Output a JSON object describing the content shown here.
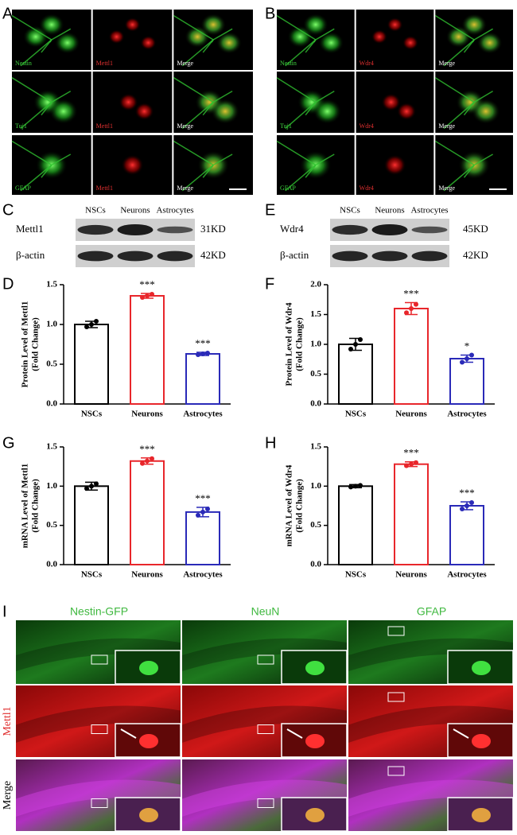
{
  "panel_labels": [
    "A",
    "B",
    "C",
    "D",
    "E",
    "F",
    "G",
    "H",
    "I"
  ],
  "micrographs": [
    {
      "labels": [
        [
          "Nestin",
          "Mettl1",
          "Merge"
        ],
        [
          "Tuj1",
          "Mettl1",
          "Merge"
        ],
        [
          "GFAP",
          "Mettl1",
          "Merge"
        ]
      ]
    },
    {
      "labels": [
        [
          "Nestin",
          "Wdr4",
          "Merge"
        ],
        [
          "Tuj1",
          "Wdr4",
          "Merge"
        ],
        [
          "GFAP",
          "Wdr4",
          "Merge"
        ]
      ]
    }
  ],
  "blots": [
    {
      "columns": [
        "NSCs",
        "Neurons",
        "Astrocytes"
      ],
      "rows": [
        {
          "name": "Mettl1",
          "size": "31KD"
        },
        {
          "name": "β-actin",
          "size": "42KD"
        }
      ]
    },
    {
      "columns": [
        "NSCs",
        "Neurons",
        "Astrocytes"
      ],
      "rows": [
        {
          "name": "Wdr4",
          "size": "45KD"
        },
        {
          "name": "β-actin",
          "size": "42KD"
        }
      ]
    }
  ],
  "tissue": {
    "columns": [
      "Nestin-GFP",
      "NeuN",
      "GFAP"
    ],
    "rows": [
      "Mettl1",
      "Merge"
    ]
  },
  "chart_data": [
    {
      "type": "bar",
      "y_label": [
        "Protein Level of Mettl1",
        "(Fold Change)"
      ],
      "categories": [
        "NSCs",
        "Neurons",
        "Astrocytes"
      ],
      "values": [
        1.0,
        1.36,
        0.63
      ],
      "errors": [
        0.04,
        0.03,
        0.02
      ],
      "points": [
        [
          0.97,
          1.0,
          1.04
        ],
        [
          1.34,
          1.36,
          1.38
        ],
        [
          0.62,
          0.63,
          0.64
        ]
      ],
      "significance": [
        null,
        "***",
        "***"
      ],
      "colors": [
        "#000000",
        "#e8262b",
        "#2a2ab8"
      ],
      "ylim": [
        0,
        1.5
      ],
      "yticks": [
        {
          "value": 0,
          "label": "0.0"
        },
        0.5,
        {
          "value": 1,
          "label": "1.0"
        },
        1.5
      ]
    },
    {
      "type": "bar",
      "y_label": [
        "Protein Level of Wdr4",
        "(Fold Change)"
      ],
      "categories": [
        "NSCs",
        "Neurons",
        "Astrocytes"
      ],
      "values": [
        1.0,
        1.6,
        0.76
      ],
      "errors": [
        0.1,
        0.1,
        0.06
      ],
      "points": [
        [
          0.92,
          1.0,
          1.08
        ],
        [
          1.53,
          1.6,
          1.67
        ],
        [
          0.7,
          0.76,
          0.82
        ]
      ],
      "significance": [
        null,
        "***",
        "*"
      ],
      "colors": [
        "#000000",
        "#e8262b",
        "#2a2ab8"
      ],
      "ylim": [
        0,
        2
      ],
      "yticks": [
        {
          "value": 0,
          "label": "0.0"
        },
        0.5,
        {
          "value": 1,
          "label": "1.0"
        },
        1.5,
        {
          "value": 2,
          "label": "2.0"
        }
      ]
    },
    {
      "type": "bar",
      "y_label": [
        "mRNA Level of Mettl1",
        "(Fold Change)"
      ],
      "categories": [
        "NSCs",
        "Neurons",
        "Astrocytes"
      ],
      "values": [
        1.0,
        1.32,
        0.67
      ],
      "errors": [
        0.05,
        0.04,
        0.06
      ],
      "points": [
        [
          0.97,
          1.0,
          1.03
        ],
        [
          1.29,
          1.32,
          1.35
        ],
        [
          0.63,
          0.67,
          0.71
        ]
      ],
      "significance": [
        null,
        "***",
        "***"
      ],
      "colors": [
        "#000000",
        "#e8262b",
        "#2a2ab8"
      ],
      "ylim": [
        0,
        1.5
      ],
      "yticks": [
        {
          "value": 0,
          "label": "0.0"
        },
        0.5,
        {
          "value": 1,
          "label": "1.0"
        },
        1.5
      ]
    },
    {
      "type": "bar",
      "y_label": [
        "mRNA Level of Wdr4",
        "(Fold Change)"
      ],
      "categories": [
        "NSCs",
        "Neurons",
        "Astrocytes"
      ],
      "values": [
        1.0,
        1.28,
        0.75
      ],
      "errors": [
        0.02,
        0.03,
        0.05
      ],
      "points": [
        [
          0.99,
          1.0,
          1.01
        ],
        [
          1.26,
          1.28,
          1.3
        ],
        [
          0.71,
          0.75,
          0.79
        ]
      ],
      "significance": [
        null,
        "***",
        "***"
      ],
      "colors": [
        "#000000",
        "#e8262b",
        "#2a2ab8"
      ],
      "ylim": [
        0,
        1.5
      ],
      "yticks": [
        {
          "value": 0,
          "label": "0.0"
        },
        0.5,
        {
          "value": 1,
          "label": "1.0"
        },
        1.5
      ]
    }
  ]
}
